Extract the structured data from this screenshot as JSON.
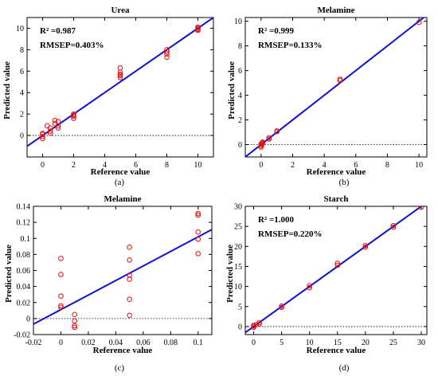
{
  "chart_data": [
    {
      "id": "a",
      "type": "scatter",
      "title": "Urea",
      "xlabel": "Reference value",
      "ylabel": "Predicted value",
      "caption": "(a)",
      "annotations": [
        "R² =0.987",
        "RMSEP=0.403%"
      ],
      "xlim": [
        -1,
        11
      ],
      "ylim": [
        -2,
        11
      ],
      "xticks": [
        0,
        2,
        4,
        6,
        8,
        10
      ],
      "yticks": [
        0,
        2,
        4,
        6,
        8,
        10
      ],
      "fit_line": [
        [
          -1,
          -1
        ],
        [
          11,
          11
        ]
      ],
      "zero_line": true,
      "points": [
        [
          0,
          0.1
        ],
        [
          0,
          -0.1
        ],
        [
          0,
          -0.3
        ],
        [
          0,
          0.2
        ],
        [
          0.3,
          0.9
        ],
        [
          0.5,
          0.4
        ],
        [
          0.5,
          0.2
        ],
        [
          0.5,
          0.7
        ],
        [
          0.8,
          1.4
        ],
        [
          0.8,
          1.1
        ],
        [
          1,
          1.3
        ],
        [
          1,
          0.9
        ],
        [
          1,
          0.7
        ],
        [
          2,
          2.0
        ],
        [
          2,
          1.8
        ],
        [
          2,
          1.6
        ],
        [
          2,
          1.9
        ],
        [
          5,
          6.3
        ],
        [
          5,
          5.9
        ],
        [
          5,
          5.6
        ],
        [
          5,
          5.4
        ],
        [
          5,
          5.7
        ],
        [
          8,
          8.0
        ],
        [
          8,
          7.8
        ],
        [
          8,
          7.6
        ],
        [
          8,
          7.3
        ],
        [
          10,
          10.1
        ],
        [
          10,
          9.9
        ],
        [
          10,
          9.8
        ],
        [
          10,
          10.0
        ]
      ]
    },
    {
      "id": "b",
      "type": "scatter",
      "title": "Melamine",
      "xlabel": "Reference value",
      "ylabel": "Predicted value",
      "caption": "(b)",
      "annotations": [
        "R² =0.999",
        "RMSEP=0.133%"
      ],
      "xlim": [
        -1,
        10.5
      ],
      "ylim": [
        -1,
        10.3
      ],
      "xticks": [
        0,
        2,
        4,
        6,
        8,
        10
      ],
      "yticks": [
        0,
        2,
        4,
        6,
        8,
        10
      ],
      "fit_line": [
        [
          -1,
          -1
        ],
        [
          10.5,
          10.5
        ]
      ],
      "zero_line": true,
      "points": [
        [
          0,
          0.05
        ],
        [
          0,
          -0.1
        ],
        [
          0,
          -0.2
        ],
        [
          0.05,
          0.1
        ],
        [
          0.1,
          0.15
        ],
        [
          0.1,
          0.2
        ],
        [
          0.05,
          0.0
        ],
        [
          0.5,
          0.45
        ],
        [
          0.5,
          0.55
        ],
        [
          1,
          1.05
        ],
        [
          1,
          1.1
        ],
        [
          5,
          5.3
        ],
        [
          5,
          5.2
        ],
        [
          10,
          9.9
        ]
      ]
    },
    {
      "id": "c",
      "type": "scatter",
      "title": "Melamine",
      "xlabel": "Reference value",
      "ylabel": "Predicted value",
      "caption": "(c)",
      "annotations": [],
      "xlim": [
        -0.02,
        0.11
      ],
      "ylim": [
        -0.02,
        0.14
      ],
      "xticks": [
        -0.02,
        0,
        0.02,
        0.04,
        0.06,
        0.08,
        0.1
      ],
      "xticklabels": [
        "-0.02",
        "0",
        "0.02",
        "0.04",
        "0.06",
        "0.08",
        "0.1"
      ],
      "yticks": [
        -0.02,
        0,
        0.02,
        0.04,
        0.06,
        0.08,
        0.1,
        0.12,
        0.14
      ],
      "yticklabels": [
        "-0.02",
        "0",
        "0.02",
        "0.04",
        "0.06",
        "0.08",
        "0.1",
        "0.12",
        "0.14"
      ],
      "fit_line": [
        [
          -0.02,
          -0.007
        ],
        [
          0.11,
          0.111
        ]
      ],
      "zero_line": true,
      "points": [
        [
          0,
          0.075
        ],
        [
          0,
          0.055
        ],
        [
          0,
          0.028
        ],
        [
          0,
          0.016
        ],
        [
          0,
          0.014
        ],
        [
          0.01,
          0.005
        ],
        [
          0.01,
          -0.003
        ],
        [
          0.01,
          -0.009
        ],
        [
          0.01,
          -0.011
        ],
        [
          0.05,
          0.089
        ],
        [
          0.05,
          0.073
        ],
        [
          0.05,
          0.054
        ],
        [
          0.05,
          0.049
        ],
        [
          0.05,
          0.024
        ],
        [
          0.05,
          0.004
        ],
        [
          0.1,
          0.131
        ],
        [
          0.1,
          0.129
        ],
        [
          0.1,
          0.108
        ],
        [
          0.1,
          0.099
        ],
        [
          0.1,
          0.081
        ]
      ]
    },
    {
      "id": "d",
      "type": "scatter",
      "title": "Starch",
      "xlabel": "Reference value",
      "ylabel": "Predicted value",
      "caption": "(d)",
      "annotations": [
        "R² =1.000",
        "RMSEP=0.220%"
      ],
      "xlim": [
        -1.5,
        31
      ],
      "ylim": [
        -2,
        30
      ],
      "xticks": [
        0,
        5,
        10,
        15,
        20,
        25,
        30
      ],
      "yticks": [
        0,
        5,
        10,
        15,
        20,
        25,
        30
      ],
      "fit_line": [
        [
          -1.5,
          -1.5
        ],
        [
          31,
          31
        ]
      ],
      "zero_line": true,
      "points": [
        [
          0,
          0.1
        ],
        [
          0,
          -0.2
        ],
        [
          0,
          0.3
        ],
        [
          0.5,
          0.5
        ],
        [
          1,
          1.0
        ],
        [
          1,
          0.6
        ],
        [
          5,
          5.1
        ],
        [
          5,
          4.8
        ],
        [
          10,
          10.2
        ],
        [
          10,
          9.7
        ],
        [
          15,
          15.8
        ],
        [
          15,
          15.3
        ],
        [
          20,
          20.2
        ],
        [
          20,
          19.8
        ],
        [
          25,
          25.2
        ],
        [
          25,
          24.8
        ],
        [
          30,
          29.8
        ]
      ]
    }
  ]
}
